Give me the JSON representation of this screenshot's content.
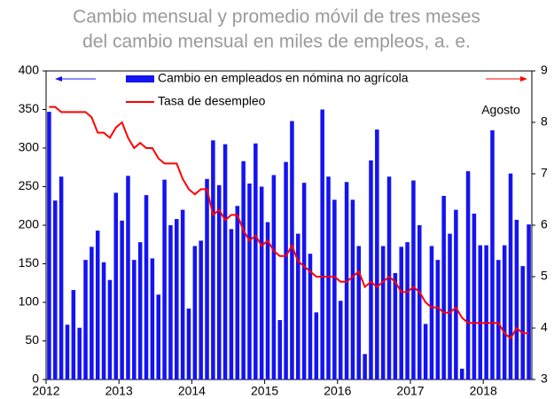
{
  "chart_data": {
    "type": "bar-line",
    "subtitle": [
      "Cambio mensual y promedio móvil de tres meses",
      "del cambio mensual en miles de empleos, a. e."
    ],
    "annotation": "Agosto",
    "categories": [
      "2012",
      null,
      null,
      null,
      null,
      null,
      null,
      null,
      null,
      null,
      null,
      null,
      "2013",
      null,
      null,
      null,
      null,
      null,
      null,
      null,
      null,
      null,
      null,
      null,
      "2014",
      null,
      null,
      null,
      null,
      null,
      null,
      null,
      null,
      null,
      null,
      null,
      "2015",
      null,
      null,
      null,
      null,
      null,
      null,
      null,
      null,
      null,
      null,
      null,
      "2016",
      null,
      null,
      null,
      null,
      null,
      null,
      null,
      null,
      null,
      null,
      null,
      "2017",
      null,
      null,
      null,
      null,
      null,
      null,
      null,
      null,
      null,
      null,
      null,
      "2018",
      null,
      null,
      null,
      null,
      null,
      null,
      null
    ],
    "series": [
      {
        "name": "Cambio en empleados en nómina no agrícola",
        "color": "#1414f0",
        "kind": "bar",
        "values": [
          347,
          232,
          263,
          71,
          116,
          67,
          155,
          172,
          193,
          152,
          129,
          242,
          206,
          264,
          155,
          178,
          239,
          157,
          110,
          259,
          200,
          208,
          220,
          92,
          173,
          180,
          260,
          310,
          252,
          305,
          195,
          225,
          283,
          254,
          306,
          250,
          204,
          265,
          77,
          282,
          335,
          189,
          255,
          163,
          87,
          350,
          263,
          233,
          102,
          256,
          233,
          173,
          33,
          284,
          324,
          173,
          263,
          138,
          172,
          178,
          258,
          200,
          72,
          173,
          155,
          238,
          189,
          220,
          14,
          270,
          215,
          174,
          174,
          323,
          155,
          174,
          267,
          207,
          147,
          201
        ]
      },
      {
        "name": "Tasa de desempleo",
        "color": "#ff0000",
        "kind": "line",
        "axis": "y2",
        "values": [
          8.3,
          8.3,
          8.2,
          8.2,
          8.2,
          8.2,
          8.2,
          8.1,
          7.8,
          7.8,
          7.7,
          7.9,
          8.0,
          7.7,
          7.5,
          7.6,
          7.5,
          7.5,
          7.3,
          7.2,
          7.2,
          7.2,
          6.9,
          6.7,
          6.6,
          6.7,
          6.7,
          6.2,
          6.3,
          6.1,
          6.2,
          6.2,
          5.9,
          5.7,
          5.8,
          5.6,
          5.7,
          5.5,
          5.4,
          5.4,
          5.6,
          5.3,
          5.2,
          5.1,
          5.0,
          5.0,
          5.0,
          5.0,
          4.9,
          4.9,
          5.0,
          5.1,
          4.8,
          4.9,
          4.8,
          4.9,
          5.0,
          4.9,
          4.7,
          4.7,
          4.8,
          4.7,
          4.5,
          4.4,
          4.4,
          4.3,
          4.3,
          4.4,
          4.2,
          4.1,
          4.1,
          4.1,
          4.1,
          4.1,
          4.1,
          3.9,
          3.8,
          4.0,
          3.9,
          3.9
        ]
      }
    ],
    "ylim": [
      0,
      400
    ],
    "yticks": [
      0,
      50,
      100,
      150,
      200,
      250,
      300,
      350,
      400
    ],
    "y2lim": [
      3,
      9
    ],
    "y2ticks": [
      3,
      4,
      5,
      6,
      7,
      8,
      9
    ]
  }
}
